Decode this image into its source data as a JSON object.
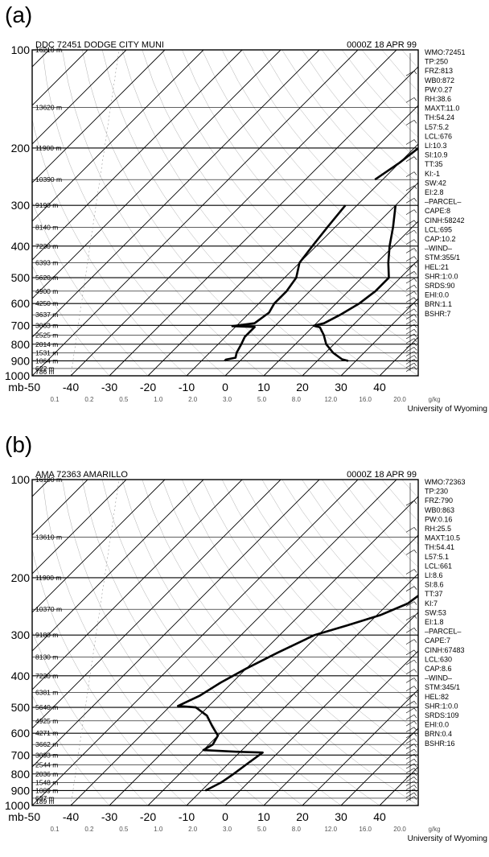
{
  "charts": [
    {
      "label": "(a)",
      "station": "DDC 72451 DODGE CITY MUNI",
      "time": "0000Z 18 APR 99",
      "credit": "University of Wyoming",
      "heights": [
        "16210 m",
        "13620 m",
        "11900 m",
        "10390 m",
        "9190 m",
        "8140 m",
        "7230 m",
        "6393 m",
        "5620 m",
        "4900 m",
        "4250 m",
        "3637 m",
        "3063 m",
        "2525 m",
        "2014 m",
        "1531 m",
        "1064 m",
        "622 m",
        "786 m"
      ],
      "indices": [
        "WMO:72451",
        "TP:250",
        "FRZ:813",
        "WB0:872",
        "PW:0.27",
        "RH:38.6",
        "MAXT:11.0",
        "TH:54.24",
        "L57:5.2",
        "LCL:676",
        "LI:10.3",
        "SI:10.9",
        "TT:35",
        "KI:-1",
        "SW:42",
        "EI:2.8",
        "–PARCEL–",
        "CAPE:8",
        "CINH:58242",
        "LCL:695",
        "CAP:10.2",
        "–WIND–",
        "STM:355/1",
        "HEL:21",
        "SHR:1:0.0",
        "SRDS:90",
        "EHI:0.0",
        "BRN:1.1",
        "BSHR:7"
      ]
    },
    {
      "label": "(b)",
      "station": "AMA 72363 AMARILLO",
      "time": "0000Z 18 APR 99",
      "credit": "University of Wyoming",
      "heights": [
        "16190 m",
        "13610 m",
        "11900 m",
        "10370 m",
        "9180 m",
        "8130 m",
        "7230 m",
        "6381 m",
        "5640 m",
        "4925 m",
        "4271 m",
        "3662 m",
        "3093 m",
        "2544 m",
        "2036 m",
        "1548 m",
        "1089 m",
        "637 m",
        "189 m"
      ],
      "indices": [
        "WMO:72363",
        "TP:230",
        "FRZ:790",
        "WB0:863",
        "PW:0.16",
        "RH:25.5",
        "MAXT:10.5",
        "TH:54.41",
        "L57:5.1",
        "LCL:661",
        "LI:8.6",
        "SI:8.6",
        "TT:37",
        "KI:7",
        "SW:53",
        "EI:1.8",
        "–PARCEL–",
        "CAPE:7",
        "CINH:67483",
        "LCL:630",
        "CAP:8.6",
        "–WIND–",
        "STM:345/1",
        "HEL:82",
        "SHR:1:0.0",
        "SRDS:109",
        "EHI:0.0",
        "BRN:0.4",
        "BSHR:16"
      ]
    }
  ],
  "chart_data": [
    {
      "type": "line",
      "title": "DDC 72451 DODGE CITY MUNI",
      "subtitle": "0000Z 18 APR 99",
      "xlabel": "",
      "ylabel": "mb",
      "x_ticks": [
        -50,
        -40,
        -30,
        -20,
        -10,
        0,
        10,
        20,
        30,
        40
      ],
      "y_ticks": [
        100,
        200,
        300,
        400,
        500,
        600,
        700,
        800,
        900,
        1000
      ],
      "mixing_ratio_labels": [
        "0.1",
        "0.2",
        "0.5",
        "1.0",
        "2.0",
        "3.0",
        "5.0",
        "8.0",
        "12.0",
        "16.0",
        "20.0",
        "g/kg"
      ],
      "ylim": [
        100,
        1000
      ],
      "y_scale": "log",
      "grid": true,
      "series": [
        {
          "points": [
            [
              -12,
              250
            ],
            [
              -10,
              222
            ],
            [
              -9,
              202
            ],
            [
              -7,
              186
            ],
            [
              -5,
              176
            ],
            [
              -3,
              156
            ],
            [
              -1,
              140
            ],
            [
              1,
              130
            ],
            [
              3,
              116
            ],
            [
              5,
              110
            ],
            [
              8,
              102
            ]
          ]
        },
        {
          "points": [
            [
              -13,
              300
            ],
            [
              -12,
              350
            ],
            [
              -11,
              400
            ],
            [
              -10,
              450
            ],
            [
              -7,
              500
            ],
            [
              -6,
              550
            ],
            [
              -6,
              600
            ],
            [
              -5,
              640
            ],
            [
              -6,
              690
            ],
            [
              -11,
              704
            ],
            [
              -8,
              706
            ],
            [
              -5,
              708
            ],
            [
              -5,
              760
            ],
            [
              -4,
              800
            ],
            [
              -3,
              850
            ],
            [
              -2,
              880
            ],
            [
              -4,
              892
            ],
            [
              -4,
              900
            ]
          ]
        },
        {
          "points": [
            [
              10,
              250
            ],
            [
              11,
              222
            ],
            [
              12,
              200
            ],
            [
              14,
              186
            ],
            [
              16,
              176
            ],
            [
              18,
              156
            ],
            [
              20,
              140
            ],
            [
              22,
              130
            ],
            [
              24,
              116
            ],
            [
              26,
              108
            ],
            [
              30,
              100
            ]
          ]
        },
        {
          "points": [
            [
              0,
              300
            ],
            [
              5,
              350
            ],
            [
              9,
              400
            ],
            [
              13,
              450
            ],
            [
              17,
              500
            ],
            [
              17,
              550
            ],
            [
              16,
              600
            ],
            [
              14,
              650
            ],
            [
              12,
              690
            ],
            [
              10,
              702
            ],
            [
              12,
              710
            ],
            [
              15,
              750
            ],
            [
              18,
              800
            ],
            [
              22,
              850
            ],
            [
              26,
              890
            ],
            [
              28,
              900
            ]
          ]
        }
      ]
    },
    {
      "type": "line",
      "title": "AMA 72363 AMARILLO",
      "subtitle": "0000Z 18 APR 99",
      "xlabel": "",
      "ylabel": "mb",
      "x_ticks": [
        -50,
        -40,
        -30,
        -20,
        -10,
        0,
        10,
        20,
        30,
        40
      ],
      "y_ticks": [
        100,
        200,
        300,
        400,
        500,
        600,
        700,
        800,
        900,
        1000
      ],
      "mixing_ratio_labels": [
        "0.1",
        "0.2",
        "0.5",
        "1.0",
        "2.0",
        "3.0",
        "5.0",
        "8.0",
        "12.0",
        "16.0",
        "20.0",
        "g/kg"
      ],
      "ylim": [
        100,
        1000
      ],
      "y_scale": "log",
      "grid": true,
      "series": [
        {
          "points": [
            [
              40,
              100
            ],
            [
              34,
              112
            ],
            [
              28,
              125
            ],
            [
              20,
              142
            ],
            [
              12,
              160
            ],
            [
              6,
              178
            ],
            [
              1,
              194
            ],
            [
              -3,
              205
            ],
            [
              -4,
              222
            ],
            [
              -5,
              240
            ],
            [
              -9,
              260
            ],
            [
              -15,
              280
            ],
            [
              -21,
              300
            ],
            [
              -26,
              340
            ],
            [
              -30,
              380
            ],
            [
              -33,
              420
            ],
            [
              -35,
              460
            ],
            [
              -38,
              495
            ],
            [
              -33,
              500
            ],
            [
              -28,
              530
            ],
            [
              -24,
              570
            ],
            [
              -20,
              610
            ],
            [
              -19,
              650
            ],
            [
              -20,
              676
            ],
            [
              -11,
              684
            ],
            [
              -4,
              688
            ],
            [
              -5,
              740
            ],
            [
              -6,
              800
            ],
            [
              -7,
              850
            ],
            [
              -9,
              900
            ]
          ]
        },
        {
          "points": [
            [
              42,
              100
            ],
            [
              37,
              112
            ],
            [
              32,
              125
            ],
            [
              24,
              142
            ],
            [
              18,
              160
            ],
            [
              13,
              178
            ],
            [
              10,
              194
            ],
            [
              8,
              210
            ],
            [
              6,
              230
            ],
            [
              5,
              250
            ],
            [
              7,
              280
            ],
            [
              10,
              300
            ],
            [
              14,
              340
            ],
            [
              18,
              380
            ],
            [
              22,
              420
            ],
            [
              25,
              460
            ],
            [
              27,
              500
            ],
            [
              30,
              540
            ],
            [
              33,
              580
            ],
            [
              36,
              620
            ],
            [
              37,
              650
            ],
            [
              36,
              680
            ],
            [
              39,
              700
            ],
            [
              43,
              750
            ],
            [
              47,
              800
            ],
            [
              51,
              850
            ],
            [
              55,
              900
            ]
          ]
        }
      ]
    }
  ]
}
